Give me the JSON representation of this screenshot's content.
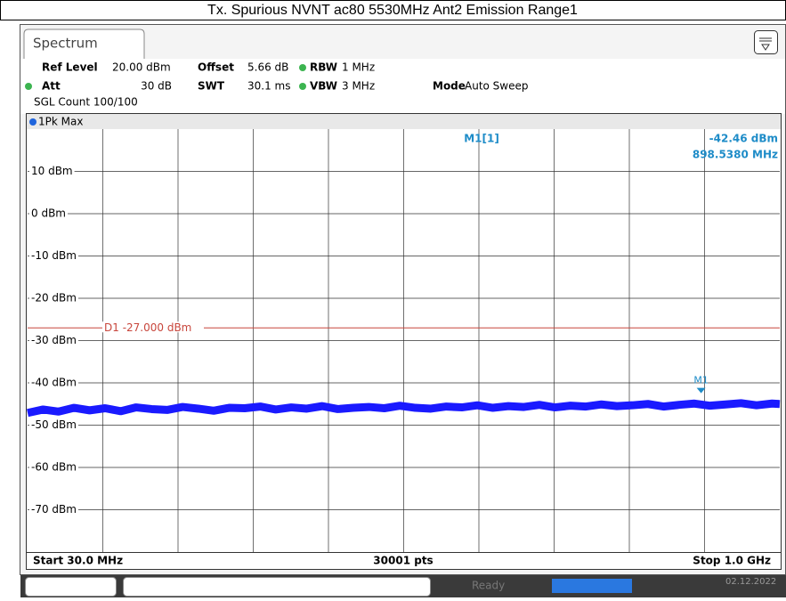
{
  "header": {
    "ref_level_label": "Ref Level",
    "ref_level": "20.00 dBm",
    "offset_label": "Offset",
    "offset": "5.66 dB",
    "rbw_label": "RBW",
    "rbw": "1 MHz",
    "att_label": "Att",
    "att": "30 dB",
    "swt_label": "SWT",
    "swt": "30.1 ms",
    "vbw_label": "VBW",
    "vbw": "3 MHz",
    "mode_label": "Mode",
    "mode": "Auto Sweep",
    "count": "SGL Count 100/100",
    "tab": "Spectrum"
  },
  "status": {
    "state": "Ready",
    "date": "02.12.2022"
  },
  "chart_data": {
    "type": "line",
    "title": "Tx. Spurious NVNT ac80 5530MHz Ant2 Emission Range1",
    "x": [
      30,
      50,
      70,
      90,
      110,
      130,
      150,
      170,
      190,
      210,
      230,
      250,
      270,
      290,
      310,
      330,
      350,
      370,
      390,
      410,
      430,
      450,
      470,
      490,
      510,
      530,
      550,
      570,
      590,
      610,
      630,
      650,
      670,
      690,
      710,
      730,
      750,
      770,
      790,
      810,
      830,
      850,
      870,
      890,
      910,
      930,
      950,
      970,
      990,
      1000
    ],
    "series": [
      {
        "name": "1Pk Max",
        "color": "#1a1aff",
        "values": [
          -47.1,
          -46.3,
          -46.8,
          -45.9,
          -46.5,
          -46.0,
          -46.7,
          -45.8,
          -46.2,
          -46.4,
          -45.7,
          -46.1,
          -46.6,
          -45.9,
          -46.0,
          -45.6,
          -46.3,
          -45.8,
          -46.1,
          -45.5,
          -46.2,
          -45.9,
          -45.7,
          -46.0,
          -45.4,
          -45.9,
          -46.1,
          -45.6,
          -45.8,
          -45.3,
          -45.9,
          -45.5,
          -45.7,
          -45.2,
          -45.8,
          -45.4,
          -45.6,
          -45.1,
          -45.5,
          -45.3,
          -45.0,
          -45.6,
          -45.2,
          -44.9,
          -45.4,
          -45.1,
          -44.8,
          -45.3,
          -44.9,
          -45.0
        ]
      }
    ],
    "xlim": [
      30,
      1000
    ],
    "ylim": [
      -80,
      20
    ],
    "yticks": [
      {
        "value": 10,
        "label": "10 dBm"
      },
      {
        "value": 0,
        "label": "0 dBm"
      },
      {
        "value": -10,
        "label": "-10 dBm"
      },
      {
        "value": -20,
        "label": "-20 dBm"
      },
      {
        "value": -30,
        "label": "-30 dBm"
      },
      {
        "value": -40,
        "label": "-40 dBm"
      },
      {
        "value": -50,
        "label": "-50 dBm"
      },
      {
        "value": -60,
        "label": "-60 dBm"
      },
      {
        "value": -70,
        "label": "-70 dBm"
      }
    ],
    "grid": true,
    "start_label": "Start 30.0 MHz",
    "stop_label": "Stop 1.0 GHz",
    "points_label": "30001 pts",
    "display_line": {
      "value": -27,
      "label": "D1 -27.000 dBm",
      "color": "#c8463c"
    },
    "marker": {
      "name": "M1",
      "readout": "M1[1]",
      "x": 898.538,
      "y": -42.46,
      "x_label": "898.5380 MHz",
      "y_label": "-42.46 dBm",
      "color": "#1e8cc8"
    }
  }
}
